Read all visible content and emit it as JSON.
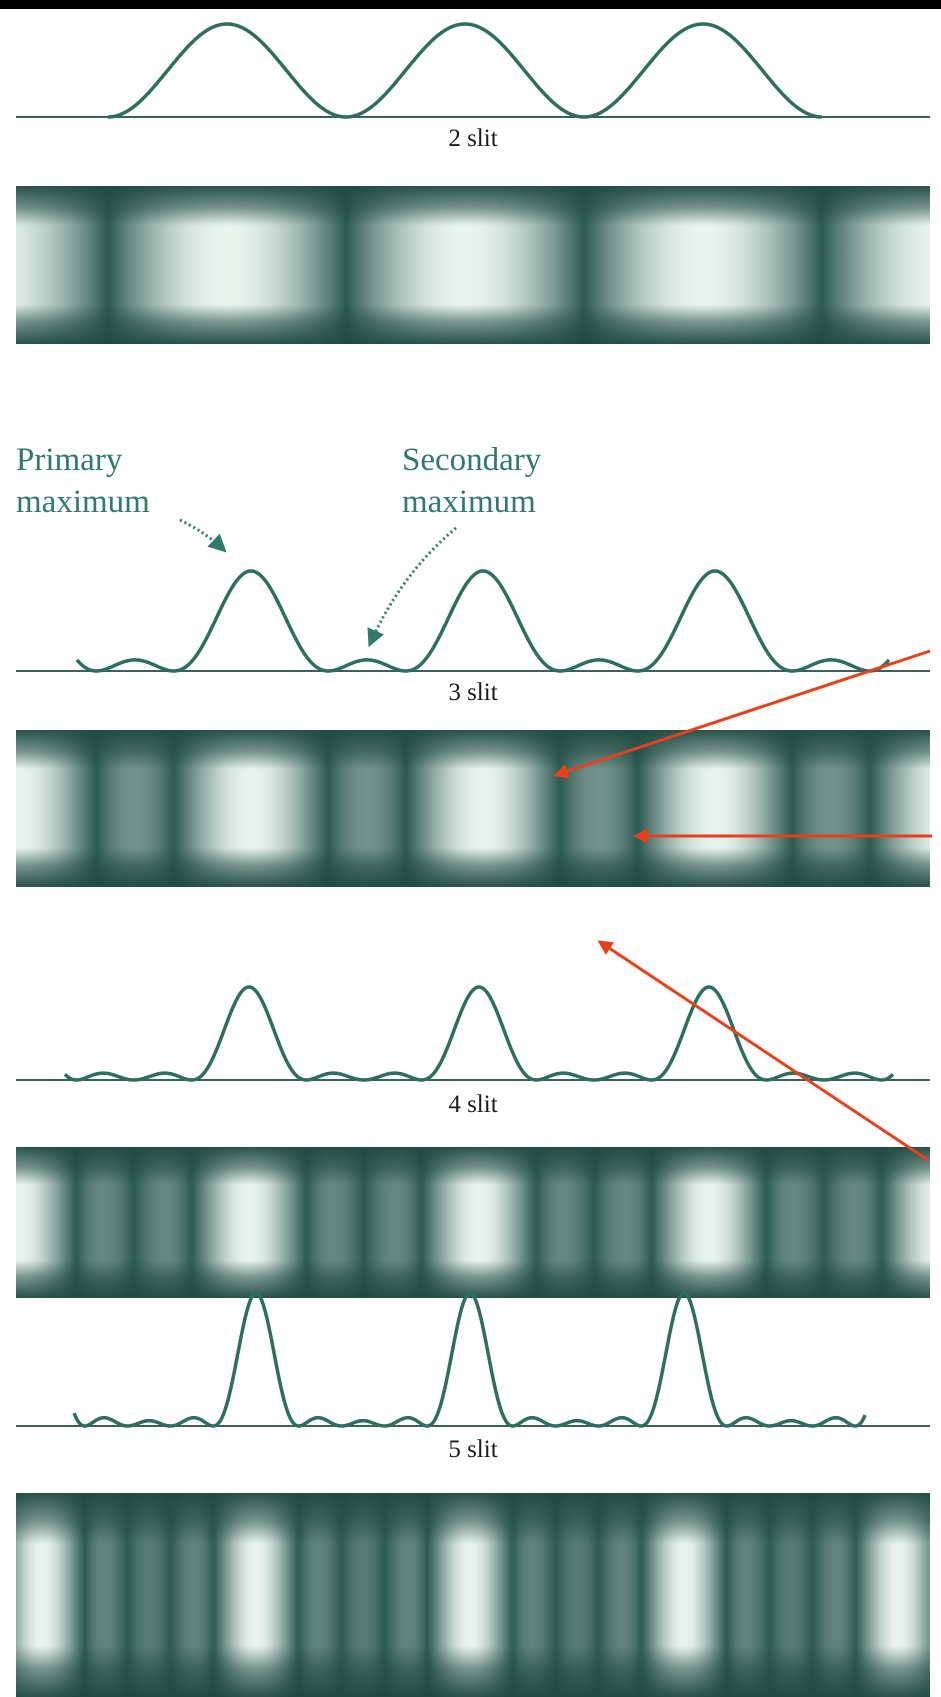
{
  "panels": [
    {
      "label": "2 slit"
    },
    {
      "label": "3 slit"
    },
    {
      "label": "4 slit"
    },
    {
      "label": "5 slit"
    }
  ],
  "annotations": [
    {
      "lines": [
        "Primary",
        "maximum"
      ]
    },
    {
      "lines": [
        "Secondary",
        "maximum"
      ]
    }
  ]
}
